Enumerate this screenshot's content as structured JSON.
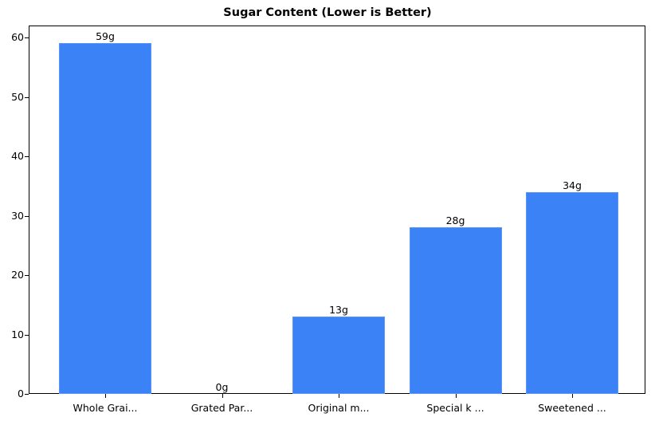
{
  "chart_data": {
    "type": "bar",
    "title": "Sugar Content (Lower is Better)",
    "xlabel": "",
    "ylabel": "",
    "categories": [
      "Whole Grai...",
      "Grated Par...",
      "Original m...",
      "Special k ...",
      "Sweetened ..."
    ],
    "values": [
      59,
      0,
      13,
      28,
      34
    ],
    "value_labels": [
      "59g",
      "0g",
      "13g",
      "28g",
      "34g"
    ],
    "ylim": [
      0,
      62
    ],
    "yticks": [
      0,
      10,
      20,
      30,
      40,
      50,
      60
    ],
    "grid": false,
    "legend": null,
    "bar_color": "#3b82f6"
  }
}
